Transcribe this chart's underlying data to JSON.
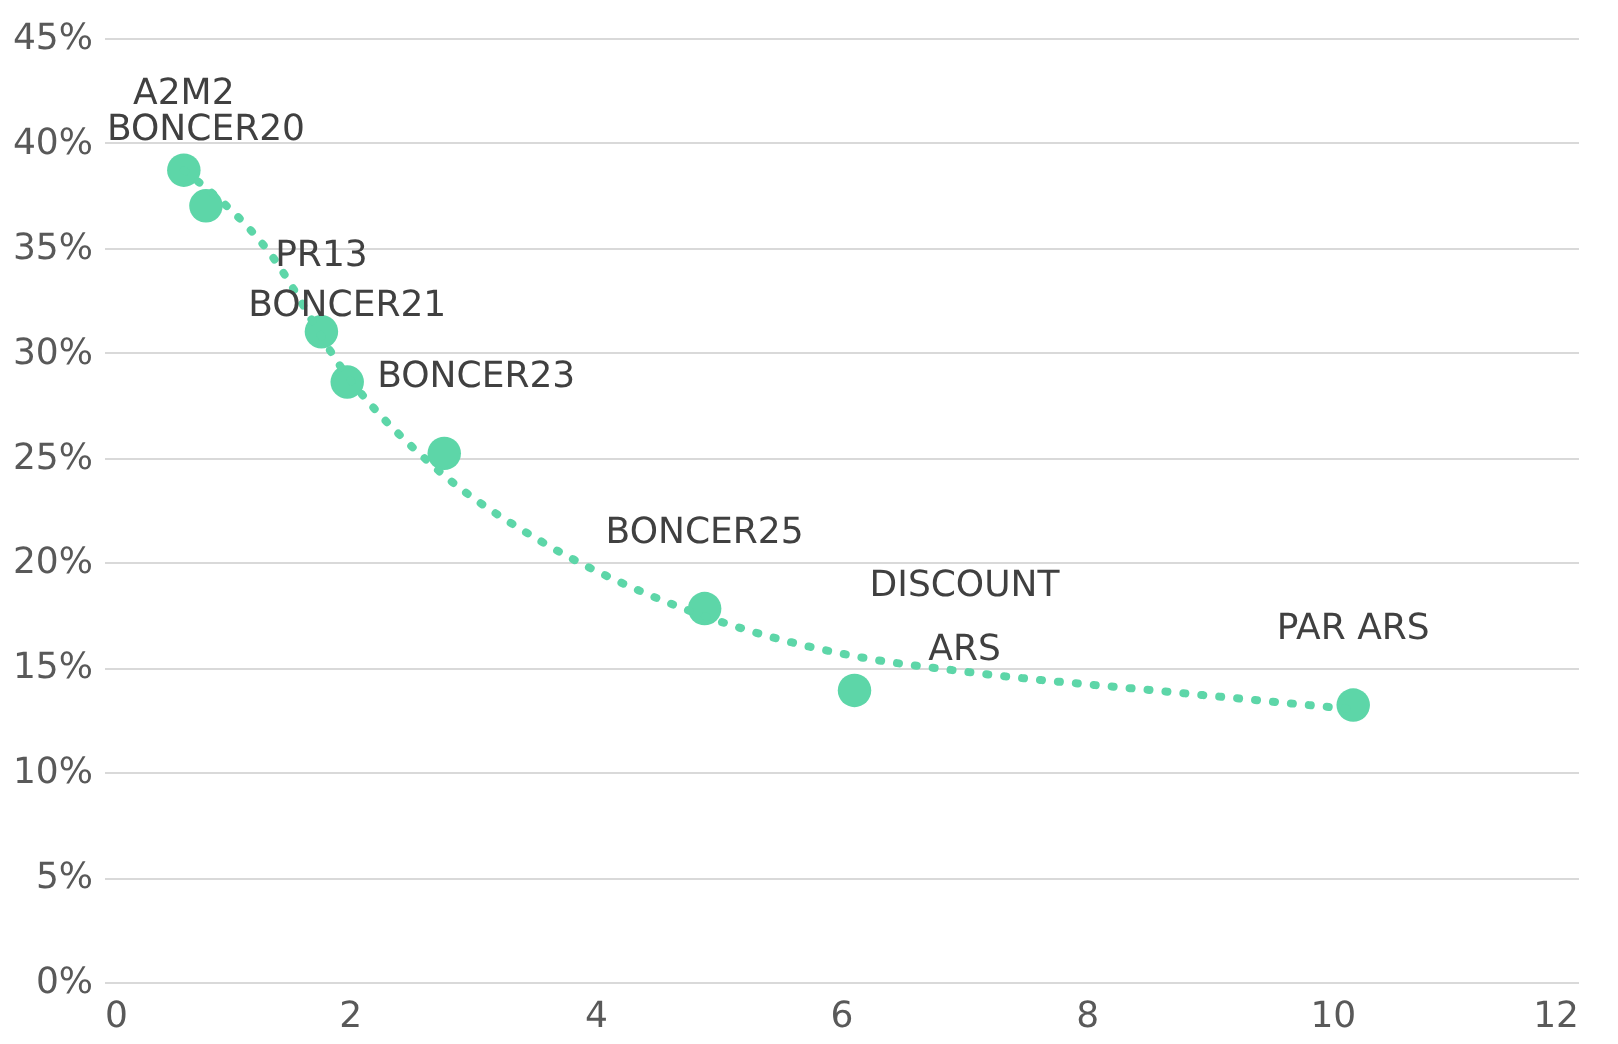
{
  "chart_data": {
    "type": "scatter",
    "xlim": [
      0,
      12
    ],
    "xticks": [
      0,
      2,
      4,
      6,
      8,
      10,
      12
    ],
    "ylim": [
      0,
      45
    ],
    "yticks": [
      {
        "value": 0,
        "label": "0%"
      },
      {
        "value": 5,
        "label": "5%"
      },
      {
        "value": 10,
        "label": "10%"
      },
      {
        "value": 15,
        "label": "15%"
      },
      {
        "value": 20,
        "label": "20%"
      },
      {
        "value": 25,
        "label": "25%"
      },
      {
        "value": 30,
        "label": "30%"
      },
      {
        "value": 35,
        "label": "35%"
      },
      {
        "value": 40,
        "label": "40%"
      },
      {
        "value": 45,
        "label": "45%"
      }
    ],
    "grid": "y",
    "marker": "circle",
    "series": [
      {
        "type": "scatter",
        "color": "#5dd6a8",
        "x": [
          0.65,
          0.83,
          1.77,
          1.98,
          2.77,
          4.89,
          6.11,
          10.17
        ],
        "values": [
          38.7,
          37.0,
          31.0,
          28.6,
          25.2,
          17.8,
          13.9,
          13.2
        ]
      },
      {
        "type": "line",
        "color": "#5dd6a8",
        "line_style": "dotted",
        "marker": "none",
        "x": [
          0.65,
          1.33,
          1.98,
          2.7,
          3.56,
          4.42,
          5.28,
          6.14,
          7.0,
          8.73,
          10.17
        ],
        "values": [
          38.7,
          34.9,
          28.9,
          24.5,
          21.0,
          18.5,
          16.7,
          15.5,
          14.8,
          13.8,
          13.0
        ]
      }
    ],
    "annotations": [
      {
        "text": "A2M2",
        "x": 0.65,
        "y": 38.7
      },
      {
        "text": "BONCER20",
        "x": 0.83,
        "y": 37.0
      },
      {
        "text": "PR13",
        "x": 1.77,
        "y": 31.0
      },
      {
        "text": "BONCER21",
        "x": 1.98,
        "y": 28.6
      },
      {
        "text": "BONCER23",
        "x": 2.77,
        "y": 25.2
      },
      {
        "text": "BONCER25",
        "x": 4.89,
        "y": 17.8
      },
      {
        "text": "DISCOUNT ARS",
        "x": 6.11,
        "y": 13.9
      },
      {
        "text": "PAR ARS",
        "x": 10.17,
        "y": 13.2
      }
    ]
  }
}
